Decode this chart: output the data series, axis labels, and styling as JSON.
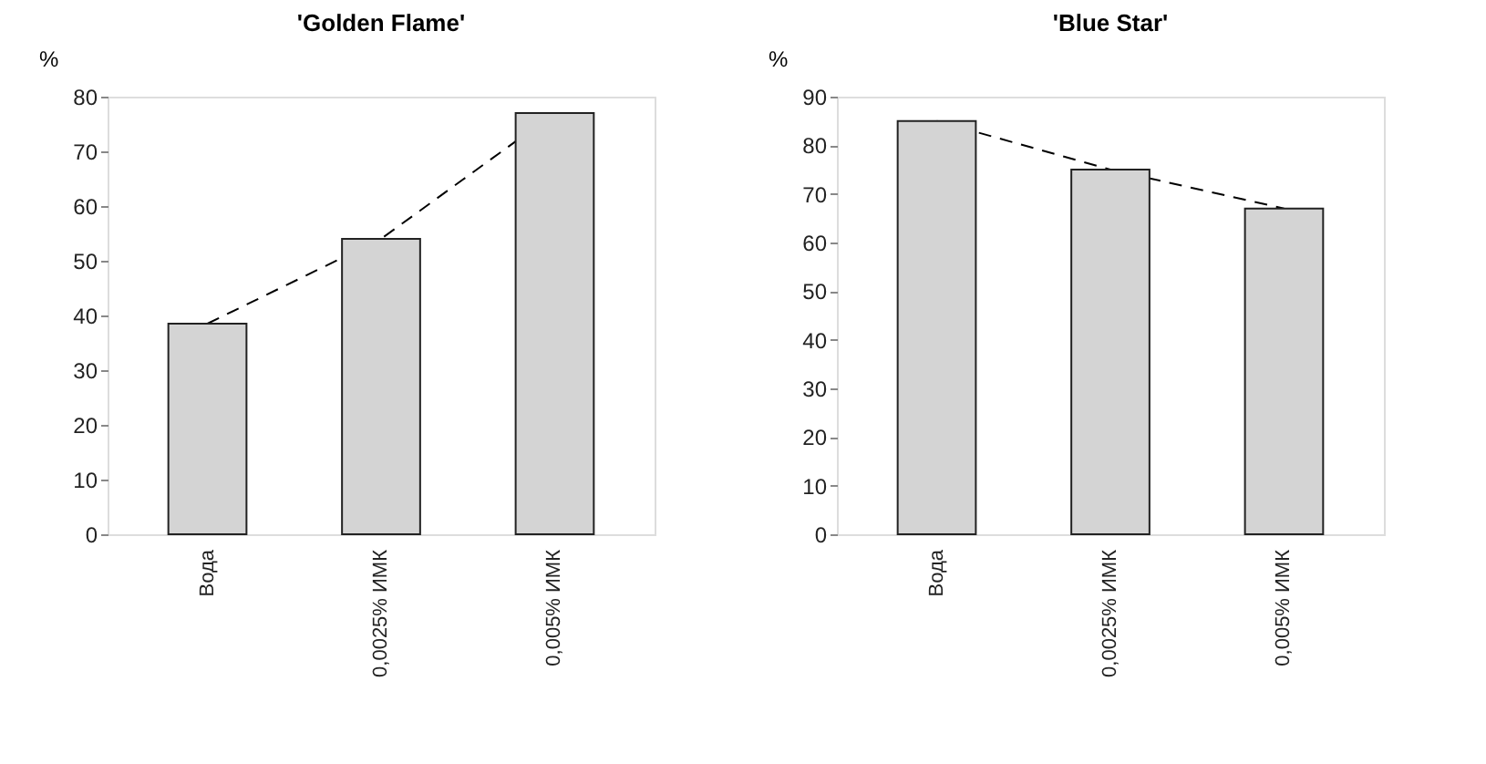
{
  "chart_data": [
    {
      "type": "bar",
      "title": "'Golden Flame'",
      "ylabel": "%",
      "categories": [
        "Вода",
        "0,0025% ИМК",
        "0,005% ИМК"
      ],
      "ylim": [
        0,
        80
      ],
      "yticks": [
        0,
        10,
        20,
        30,
        40,
        50,
        60,
        70,
        80
      ],
      "series": [
        {
          "color": "#d4d4d4",
          "values": [
            38.5,
            54,
            77
          ]
        },
        {
          "type": "line",
          "color": "#000000",
          "line_style": "dashed",
          "values": [
            38.5,
            54,
            77
          ]
        }
      ]
    },
    {
      "type": "bar",
      "title": "'Blue Star'",
      "ylabel": "%",
      "categories": [
        "Вода",
        "0,0025% ИМК",
        "0,005% ИМК"
      ],
      "ylim": [
        0,
        90
      ],
      "yticks": [
        0,
        10,
        20,
        30,
        40,
        50,
        60,
        70,
        80,
        90
      ],
      "series": [
        {
          "color": "#d4d4d4",
          "values": [
            85,
            75,
            67
          ]
        },
        {
          "type": "line",
          "color": "#000000",
          "line_style": "dashed",
          "values": [
            85,
            75,
            67
          ]
        }
      ]
    }
  ]
}
